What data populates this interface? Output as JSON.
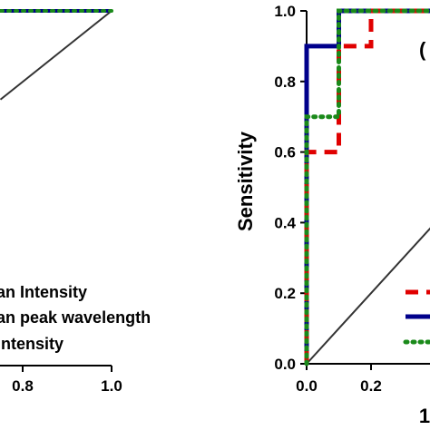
{
  "chart_data": [
    {
      "type": "line",
      "title": "",
      "xlabel": "",
      "ylabel": "",
      "xlim": [
        0,
        1
      ],
      "ylim": [
        0,
        1
      ],
      "x_tick_labels": [
        "0.8",
        "1.0"
      ],
      "reference_line": true,
      "series": [
        {
          "name": "an Intensity",
          "color": "#e00000",
          "dash": "dashed",
          "x": [
            0,
            1
          ],
          "y": [
            1,
            1
          ]
        },
        {
          "name": "an peak wavelength",
          "color": "#00008b",
          "dash": "solid",
          "x": [
            0,
            1
          ],
          "y": [
            1,
            1
          ]
        },
        {
          "name": "Intensity",
          "color": "#1a8a1a",
          "dash": "dotted",
          "x": [
            0,
            1
          ],
          "y": [
            1,
            1
          ]
        }
      ]
    },
    {
      "type": "line",
      "title": "",
      "panel_label": "(",
      "xlabel": "1",
      "ylabel": "Sensitivity",
      "xlim": [
        0,
        1
      ],
      "ylim": [
        0,
        1
      ],
      "x_tick_labels": [
        "0.0",
        "0.2"
      ],
      "y_tick_labels": [
        "0.0",
        "0.2",
        "0.4",
        "0.6",
        "0.8",
        "1.0"
      ],
      "reference_line": true,
      "series": [
        {
          "color": "#e00000",
          "dash": "dashed",
          "x": [
            0,
            0,
            0.1,
            0.1,
            0.2,
            0.2,
            0.4
          ],
          "y": [
            0,
            0.6,
            0.6,
            0.9,
            0.9,
            1.0,
            1.0
          ]
        },
        {
          "color": "#00008b",
          "dash": "solid",
          "x": [
            0,
            0,
            0.1,
            0.1,
            0.4
          ],
          "y": [
            0,
            0.9,
            0.9,
            1.0,
            1.0
          ]
        },
        {
          "color": "#1a8a1a",
          "dash": "dotted",
          "x": [
            0,
            0,
            0.1,
            0.1,
            0.4
          ],
          "y": [
            0,
            0.7,
            0.7,
            1.0,
            1.0
          ]
        }
      ]
    }
  ]
}
